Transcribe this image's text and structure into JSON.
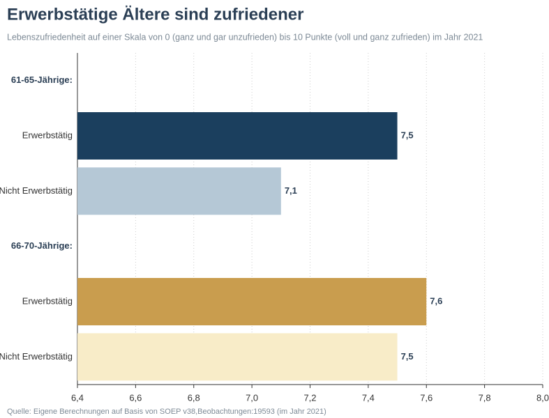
{
  "chart_data": {
    "type": "barh",
    "title": "Erwerbstätige Ältere sind zufriedener",
    "subtitle": "Lebenszufriedenheit auf einer Skala von 0 (ganz und gar unzufrieden) bis 10 Punkte (voll und ganz zufrieden) im Jahr 2021",
    "source": "Quelle: Eigene Berechnungen auf Basis von SOEP v38,Beobachtungen:19593 (im Jahr 2021)",
    "categories": [
      "61-65-Jährige:",
      "Erwerbstätig",
      "Nicht Erwerbstätig",
      "66-70-Jährige:",
      "Erwerbstätig",
      "Nicht Erwerbstätig"
    ],
    "values": [
      null,
      7.5,
      7.1,
      null,
      7.6,
      7.5
    ],
    "value_labels": [
      null,
      "7,5",
      "7,1",
      null,
      "7,6",
      "7,5"
    ],
    "colors": [
      null,
      "#1b3f5e",
      "#b5c8d6",
      null,
      "#c99d4e",
      "#f8ecc8"
    ],
    "xlim": [
      6.4,
      8.0
    ],
    "xticks": [
      {
        "value": 6.4,
        "label": "6,4"
      },
      {
        "value": 6.6,
        "label": "6,6"
      },
      {
        "value": 6.8,
        "label": "6,8"
      },
      {
        "value": 7.0,
        "label": "7,0"
      },
      {
        "value": 7.2,
        "label": "7,2"
      },
      {
        "value": 7.4,
        "label": "7,4"
      },
      {
        "value": 7.6,
        "label": "7,6"
      },
      {
        "value": 7.8,
        "label": "7,8"
      },
      {
        "value": 8.0,
        "label": "8,0"
      }
    ],
    "grid": true
  }
}
